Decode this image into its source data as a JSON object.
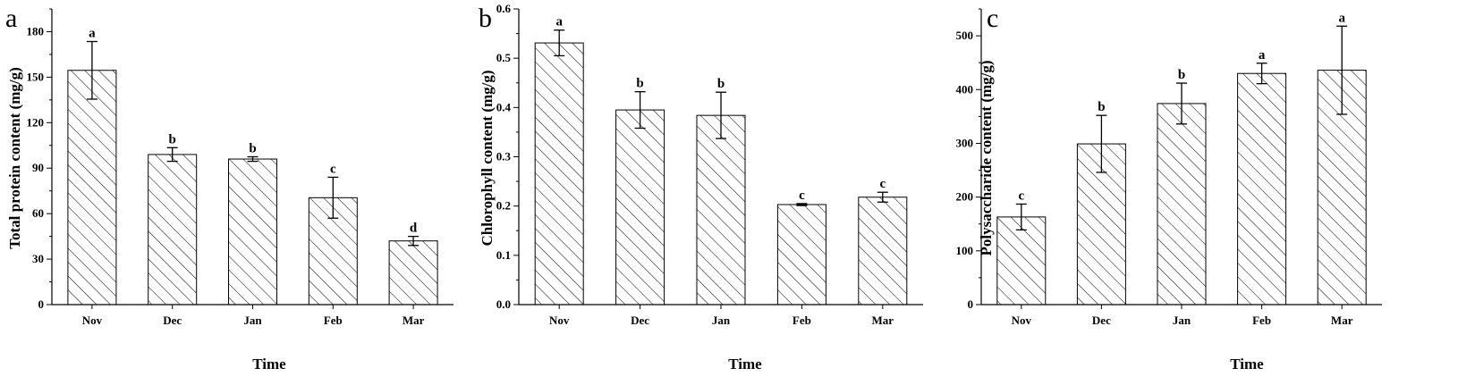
{
  "chart_data": [
    {
      "type": "bar",
      "panel": "a",
      "categories": [
        "Nov",
        "Dec",
        "Jan",
        "Feb",
        "Mar"
      ],
      "values": [
        154.5,
        99,
        96,
        70.5,
        42
      ],
      "errors": [
        19,
        4.5,
        1.5,
        13.5,
        3
      ],
      "significance": [
        "a",
        "b",
        "b",
        "c",
        "d"
      ],
      "xlabel": "Time",
      "ylabel": "Total protein content (mg/g)",
      "ylim": [
        0,
        195
      ],
      "yticks": [
        0,
        30,
        60,
        90,
        120,
        150,
        180
      ],
      "ytick_labels": [
        "0",
        "30",
        "60",
        "90",
        "120",
        "150",
        "180"
      ],
      "pattern": "diagonal-hatch"
    },
    {
      "type": "bar",
      "panel": "b",
      "categories": [
        "Nov",
        "Dec",
        "Jan",
        "Feb",
        "Mar"
      ],
      "values": [
        0.531,
        0.395,
        0.384,
        0.203,
        0.218
      ],
      "errors": [
        0.026,
        0.037,
        0.047,
        0.002,
        0.01
      ],
      "significance": [
        "a",
        "b",
        "b",
        "c",
        "c"
      ],
      "xlabel": "Time",
      "ylabel": "Chlorophyll content (mg/g)",
      "ylim": [
        0,
        0.6
      ],
      "yticks": [
        0,
        0.1,
        0.2,
        0.3,
        0.4,
        0.5,
        0.6
      ],
      "ytick_labels": [
        "0.0",
        "0.1",
        "0.2",
        "0.3",
        "0.4",
        "0.5",
        "0.6"
      ],
      "pattern": "diagonal-hatch"
    },
    {
      "type": "bar",
      "panel": "c",
      "categories": [
        "Nov",
        "Dec",
        "Jan",
        "Feb",
        "Mar"
      ],
      "values": [
        163,
        299,
        374,
        430,
        436
      ],
      "errors": [
        24,
        53,
        38,
        19,
        82
      ],
      "significance": [
        "c",
        "b",
        "b",
        "a",
        "a"
      ],
      "xlabel": "Time",
      "ylabel": "Polysaccharide content (mg/g)",
      "ylim": [
        0,
        550
      ],
      "yticks": [
        0,
        100,
        200,
        300,
        400,
        500
      ],
      "ytick_labels": [
        "0",
        "100",
        "200",
        "300",
        "400",
        "500"
      ],
      "pattern": "diagonal-hatch"
    }
  ]
}
